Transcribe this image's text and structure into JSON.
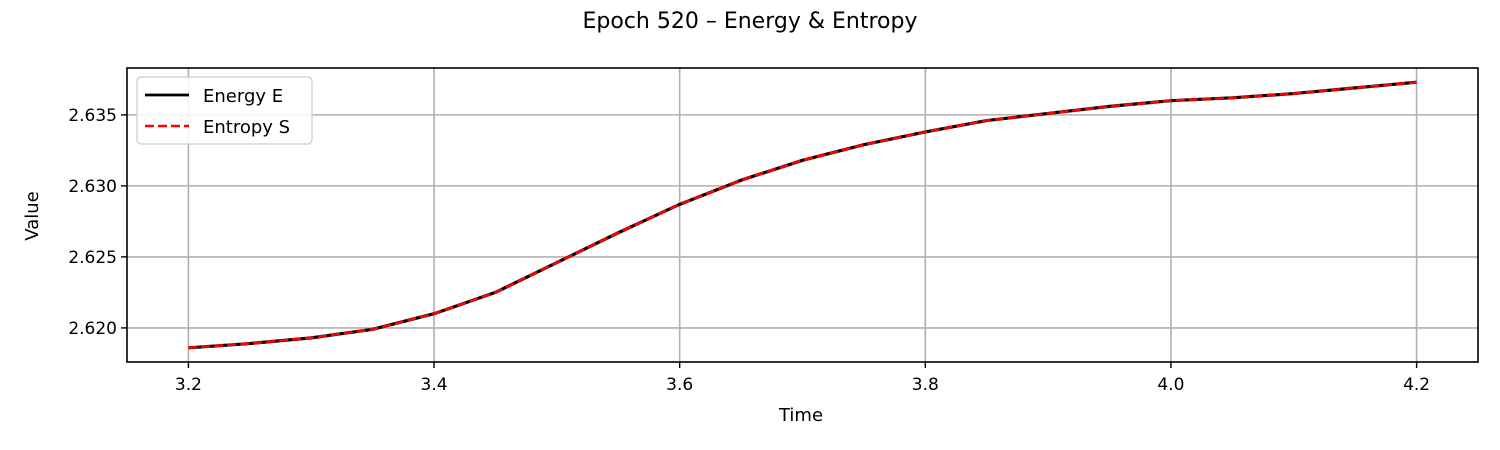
{
  "chart_data": {
    "type": "line",
    "title": "Epoch 520 – Energy & Entropy",
    "xlabel": "Time",
    "ylabel": "Value",
    "xlim": [
      3.15,
      4.25
    ],
    "ylim": [
      2.6176,
      2.6383
    ],
    "xticks": [
      3.2,
      3.4,
      3.6,
      3.8,
      4.0,
      4.2
    ],
    "xtick_labels": [
      "3.2",
      "3.4",
      "3.6",
      "3.8",
      "4.0",
      "4.2"
    ],
    "yticks": [
      2.62,
      2.625,
      2.63,
      2.635
    ],
    "ytick_labels": [
      "2.620",
      "2.625",
      "2.630",
      "2.635"
    ],
    "grid": true,
    "legend_position": "top-left",
    "x": [
      3.2,
      3.25,
      3.3,
      3.35,
      3.4,
      3.45,
      3.5,
      3.55,
      3.6,
      3.65,
      3.7,
      3.75,
      3.8,
      3.85,
      3.9,
      3.95,
      4.0,
      4.05,
      4.1,
      4.15,
      4.2
    ],
    "series": [
      {
        "name": "Energy E",
        "color": "#000000",
        "style": "solid",
        "values": [
          2.6186,
          2.6189,
          2.6193,
          2.6199,
          2.621,
          2.6225,
          2.6246,
          2.6267,
          2.6287,
          2.6304,
          2.6318,
          2.6329,
          2.6338,
          2.6346,
          2.6351,
          2.6356,
          2.636,
          2.6362,
          2.6365,
          2.6369,
          2.6373
        ]
      },
      {
        "name": "Entropy S",
        "color": "#ff0000",
        "style": "dashed",
        "values": [
          2.6186,
          2.6189,
          2.6193,
          2.6199,
          2.621,
          2.6225,
          2.6246,
          2.6267,
          2.6287,
          2.6304,
          2.6318,
          2.6329,
          2.6338,
          2.6346,
          2.6351,
          2.6356,
          2.636,
          2.6362,
          2.6365,
          2.6369,
          2.6373
        ]
      }
    ]
  }
}
